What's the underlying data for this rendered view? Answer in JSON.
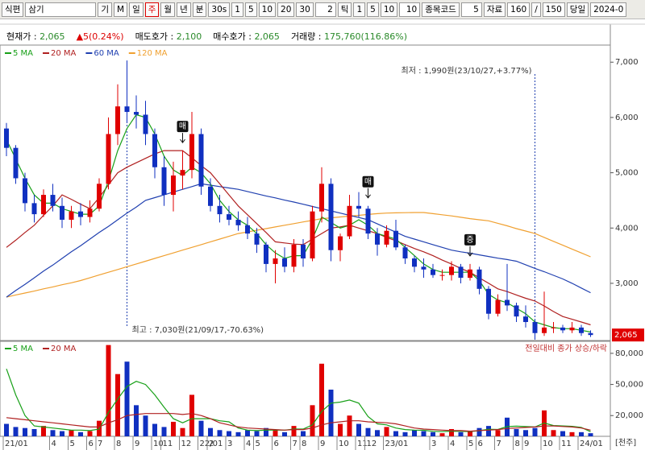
{
  "toolbar": {
    "items": [
      "식편",
      "삼기",
      "기",
      "M",
      "일",
      "주",
      "월",
      "년",
      "분",
      "30s",
      "1",
      "5",
      "10",
      "20",
      "30",
      "2",
      "틱",
      "1",
      "5",
      "10",
      "10",
      "종목코드",
      "5",
      "자료",
      "160",
      "/",
      "150",
      "당일",
      "2024-0"
    ],
    "selected_index": 5
  },
  "info": [
    {
      "label": "현재가 :",
      "value": "2,065"
    },
    {
      "label": "▲5(0.24%)"
    },
    {
      "label": "매도호가 :",
      "value": "2,100"
    },
    {
      "label": "매수호가 :",
      "value": "2,065"
    },
    {
      "label": "거래량 :",
      "value": "175,760(116.86%)"
    }
  ],
  "chart_data": [
    {
      "type": "candlestick",
      "open": [
        5800,
        5450,
        4900,
        4450,
        4250,
        4600,
        4400,
        4150,
        4300,
        4200,
        4350,
        4800,
        5700,
        6200,
        6100,
        6050,
        5700,
        5100,
        4600,
        4950,
        5050,
        5700,
        4750,
        4400,
        4250,
        4150,
        4050,
        3900,
        3700,
        3350,
        3450,
        3300,
        3700,
        3450,
        4300,
        4800,
        3600,
        3850,
        4400,
        4350,
        3900,
        3700,
        3950,
        3650,
        3450,
        3300,
        3250,
        3150,
        3150,
        3300,
        3100,
        3250,
        2900,
        2450,
        2700,
        2600,
        2400,
        2300,
        2100,
        2200,
        2200,
        2150,
        2200,
        2100
      ],
      "high": [
        5900,
        5500,
        5000,
        4600,
        4700,
        4800,
        4550,
        4400,
        4450,
        4500,
        4900,
        6000,
        6600,
        7030,
        6400,
        6300,
        5800,
        5300,
        5200,
        5400,
        6100,
        5800,
        4900,
        4600,
        4400,
        4300,
        4200,
        4000,
        3750,
        3600,
        3650,
        3800,
        3800,
        4400,
        5100,
        4900,
        3900,
        4600,
        4650,
        4400,
        4000,
        4050,
        4150,
        3700,
        3500,
        3450,
        3350,
        3250,
        3400,
        3350,
        3350,
        3300,
        2950,
        2800,
        3350,
        2650,
        2600,
        2350,
        2850,
        2300,
        2250,
        2300,
        2250,
        2150
      ],
      "low": [
        5300,
        4800,
        4300,
        4100,
        4200,
        4300,
        4000,
        4000,
        4050,
        4100,
        4300,
        4700,
        5500,
        5900,
        5800,
        5500,
        4900,
        4400,
        4300,
        4700,
        4900,
        4600,
        4300,
        4100,
        4050,
        3950,
        3800,
        3550,
        3200,
        3000,
        3200,
        3200,
        3300,
        3400,
        4100,
        3400,
        3400,
        3800,
        4200,
        3800,
        3500,
        3650,
        3600,
        3350,
        3200,
        3100,
        3100,
        3050,
        3050,
        3000,
        3050,
        2800,
        2350,
        2400,
        2500,
        2300,
        2200,
        1990,
        2050,
        2100,
        2100,
        2100,
        2050,
        2030
      ],
      "close": [
        5450,
        4900,
        4450,
        4250,
        4600,
        4400,
        4150,
        4300,
        4200,
        4350,
        4800,
        5700,
        6200,
        6100,
        6050,
        5700,
        5100,
        4600,
        4950,
        5050,
        5700,
        4750,
        4400,
        4250,
        4150,
        4050,
        3900,
        3700,
        3350,
        3450,
        3300,
        3700,
        3450,
        4300,
        4800,
        3600,
        3850,
        4400,
        4350,
        3900,
        3700,
        3950,
        3650,
        3450,
        3300,
        3250,
        3150,
        3150,
        3300,
        3100,
        3250,
        2900,
        2450,
        2700,
        2600,
        2400,
        2300,
        2100,
        2200,
        2200,
        2150,
        2200,
        2100,
        2065
      ],
      "up_color": "#e00000",
      "down_color": "#1030c0",
      "series": [
        {
          "name": "5 MA",
          "color": "#18a018",
          "values": [
            5600,
            5250,
            4900,
            4600,
            4450,
            4450,
            4350,
            4300,
            4250,
            4250,
            4400,
            4850,
            5400,
            5800,
            6050,
            6000,
            5700,
            5300,
            5050,
            4950,
            5100,
            5000,
            4800,
            4500,
            4300,
            4150,
            4050,
            3900,
            3700,
            3550,
            3450,
            3500,
            3500,
            3800,
            4200,
            4100,
            4000,
            4050,
            4150,
            4050,
            3900,
            3850,
            3800,
            3650,
            3500,
            3350,
            3250,
            3200,
            3200,
            3200,
            3200,
            3050,
            2800,
            2700,
            2650,
            2550,
            2450,
            2300,
            2250,
            2200,
            2180,
            2180,
            2150,
            2120
          ]
        },
        {
          "name": "20 MA",
          "color": "#b02020",
          "values": [
            3650,
            3780,
            3920,
            4050,
            4230,
            4400,
            4600,
            4520,
            4430,
            4350,
            4550,
            4780,
            5000,
            5100,
            5180,
            5260,
            5340,
            5400,
            5400,
            5400,
            5270,
            5130,
            5000,
            4800,
            4600,
            4400,
            4240,
            4080,
            3920,
            3750,
            3730,
            3710,
            3700,
            3800,
            3900,
            4000,
            4020,
            4050,
            4000,
            3950,
            3900,
            3830,
            3770,
            3700,
            3630,
            3570,
            3500,
            3420,
            3350,
            3270,
            3200,
            3100,
            3000,
            2900,
            2850,
            2790,
            2730,
            2680,
            2590,
            2490,
            2400,
            2350,
            2300,
            2250
          ]
        },
        {
          "name": "60 MA",
          "color": "#2040b0",
          "values": [
            2750,
            2870,
            2980,
            3100,
            3220,
            3330,
            3450,
            3570,
            3680,
            3800,
            3920,
            4030,
            4150,
            4270,
            4380,
            4500,
            4550,
            4600,
            4650,
            4700,
            4750,
            4800,
            4775,
            4750,
            4725,
            4700,
            4660,
            4620,
            4580,
            4545,
            4505,
            4470,
            4430,
            4390,
            4350,
            4310,
            4270,
            4230,
            4190,
            4150,
            4075,
            4000,
            3925,
            3850,
            3800,
            3750,
            3700,
            3650,
            3600,
            3570,
            3545,
            3515,
            3485,
            3455,
            3430,
            3400,
            3335,
            3270,
            3210,
            3145,
            3080,
            3000,
            2915,
            2830
          ]
        },
        {
          "name": "120 MA",
          "color": "#f0a030",
          "values": [
            2750,
            2790,
            2825,
            2860,
            2900,
            2935,
            2975,
            3010,
            3050,
            3100,
            3150,
            3200,
            3250,
            3300,
            3350,
            3400,
            3450,
            3500,
            3550,
            3600,
            3650,
            3700,
            3750,
            3800,
            3850,
            3900,
            3930,
            3960,
            3990,
            4020,
            4050,
            4080,
            4110,
            4140,
            4170,
            4185,
            4200,
            4215,
            4230,
            4245,
            4260,
            4270,
            4275,
            4278,
            4280,
            4280,
            4260,
            4240,
            4220,
            4195,
            4170,
            4150,
            4130,
            4085,
            4040,
            3990,
            3945,
            3900,
            3830,
            3760,
            3690,
            3620,
            3550,
            3480
          ]
        }
      ],
      "ylim": [
        1980,
        7280
      ],
      "yticks": [
        {
          "value": 3000,
          "label": "3,000"
        },
        {
          "value": 4000,
          "label": "4,000"
        },
        {
          "value": 5000,
          "label": "5,000"
        },
        {
          "value": 6000,
          "label": "6,000"
        },
        {
          "value": 7000,
          "label": "7,000"
        }
      ],
      "current": {
        "value": 2065,
        "label": "2,065"
      },
      "annotations": [
        {
          "text": "최저 : 1,990원(23/10/27,+3.77%)",
          "index": 57
        },
        {
          "text": "최고 : 7,030원(21/09/17,-70.63%)",
          "index": 13
        }
      ],
      "markers": [
        {
          "text": "매",
          "index": 19
        },
        {
          "text": "매",
          "index": 39
        },
        {
          "text": "증",
          "index": 50
        }
      ]
    },
    {
      "type": "bar",
      "values": [
        12000,
        9000,
        8000,
        7000,
        10000,
        6000,
        5000,
        6000,
        4000,
        5000,
        15000,
        88000,
        60000,
        72000,
        30000,
        20000,
        12000,
        9000,
        14000,
        8000,
        40000,
        15000,
        8000,
        6000,
        5000,
        4000,
        6000,
        5000,
        8000,
        6000,
        4000,
        10000,
        5000,
        30000,
        70000,
        45000,
        12000,
        20000,
        12000,
        8000,
        6000,
        9000,
        5000,
        4000,
        6000,
        5000,
        4000,
        3000,
        7000,
        4000,
        5000,
        8000,
        10000,
        6000,
        18000,
        7000,
        6000,
        8000,
        25000,
        6000,
        5000,
        4000,
        4000,
        3000
      ],
      "series": [
        {
          "name": "5 MA",
          "color": "#18a018",
          "values": [
            65000,
            40000,
            20000,
            10000,
            9000,
            8000,
            7000,
            6000,
            6000,
            5500,
            7000,
            23000,
            36000,
            48000,
            53000,
            50000,
            40000,
            28000,
            17000,
            13000,
            17000,
            17000,
            17000,
            15000,
            14000,
            8000,
            6000,
            5500,
            6000,
            6000,
            6000,
            7000,
            7000,
            11000,
            24000,
            32000,
            33000,
            35000,
            32000,
            19000,
            12000,
            11000,
            8000,
            6500,
            6000,
            5800,
            4800,
            4500,
            5000,
            4800,
            4600,
            5400,
            6800,
            6600,
            9400,
            9800,
            9400,
            9000,
            12800,
            10400,
            10000,
            9600,
            8600,
            4400
          ]
        },
        {
          "name": "20 MA",
          "color": "#b02020",
          "values": [
            18000,
            17000,
            16000,
            15000,
            14000,
            13000,
            12000,
            11000,
            10000,
            9000,
            9000,
            13000,
            16000,
            20000,
            21000,
            22000,
            22000,
            22000,
            22000,
            21000,
            22000,
            20000,
            17000,
            13000,
            11000,
            9000,
            8000,
            7500,
            7000,
            6500,
            6000,
            6500,
            6500,
            8000,
            11000,
            13000,
            14000,
            15000,
            15000,
            14000,
            13500,
            13000,
            12000,
            10000,
            8000,
            7000,
            6500,
            6000,
            5500,
            5500,
            5000,
            5500,
            6000,
            6500,
            7500,
            8000,
            8500,
            9000,
            10000,
            10000,
            9500,
            9000,
            8000,
            6000
          ]
        }
      ],
      "categories": [
        "21/01",
        null,
        null,
        null,
        null,
        "4",
        null,
        "5",
        null,
        "6",
        "7",
        null,
        "8",
        null,
        "9",
        null,
        "10",
        "11",
        null,
        "12",
        null,
        "22/01",
        "2",
        null,
        "3",
        null,
        "4",
        "5",
        null,
        "6",
        null,
        "7",
        "8",
        null,
        "9",
        null,
        "10",
        null,
        "11",
        "12",
        null,
        "23/01",
        null,
        null,
        null,
        null,
        "3",
        null,
        "4",
        null,
        "5",
        "6",
        null,
        "7",
        null,
        "8",
        "9",
        null,
        "10",
        null,
        "11",
        null,
        "24/01",
        null
      ],
      "ylim": [
        0,
        90800
      ],
      "yticks": [
        {
          "value": 20000,
          "label": "20,000"
        },
        {
          "value": 50000,
          "label": "50,000"
        },
        {
          "value": 80000,
          "label": "80,000"
        }
      ],
      "subtitle": "전일대비 종가 상승/하락",
      "unit": "[천주]"
    }
  ]
}
